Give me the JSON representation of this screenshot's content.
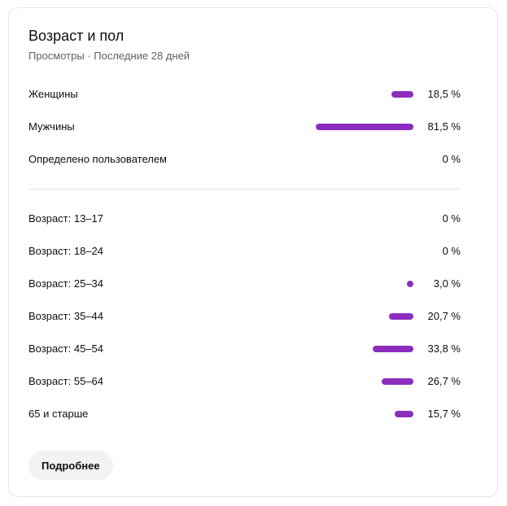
{
  "card": {
    "title": "Возраст и пол",
    "subtitle": "Просмотры · Последние 28 дней",
    "more_label": "Подробнее"
  },
  "accent_color": "#8c2dbe",
  "gender": [
    {
      "label": "Женщины",
      "value": "18,5 %",
      "pct": 18.5
    },
    {
      "label": "Мужчины",
      "value": "81,5 %",
      "pct": 81.5
    },
    {
      "label": "Определено пользователем",
      "value": "0 %",
      "pct": 0
    }
  ],
  "age": [
    {
      "label": "Возраст: 13–17",
      "value": "0 %",
      "pct": 0
    },
    {
      "label": "Возраст: 18–24",
      "value": "0 %",
      "pct": 0
    },
    {
      "label": "Возраст: 25–34",
      "value": "3,0 %",
      "pct": 3.0
    },
    {
      "label": "Возраст: 35–44",
      "value": "20,7 %",
      "pct": 20.7
    },
    {
      "label": "Возраст: 45–54",
      "value": "33,8 %",
      "pct": 33.8
    },
    {
      "label": "Возраст: 55–64",
      "value": "26,7 %",
      "pct": 26.7
    },
    {
      "label": "65 и старше",
      "value": "15,7 %",
      "pct": 15.7
    }
  ]
}
